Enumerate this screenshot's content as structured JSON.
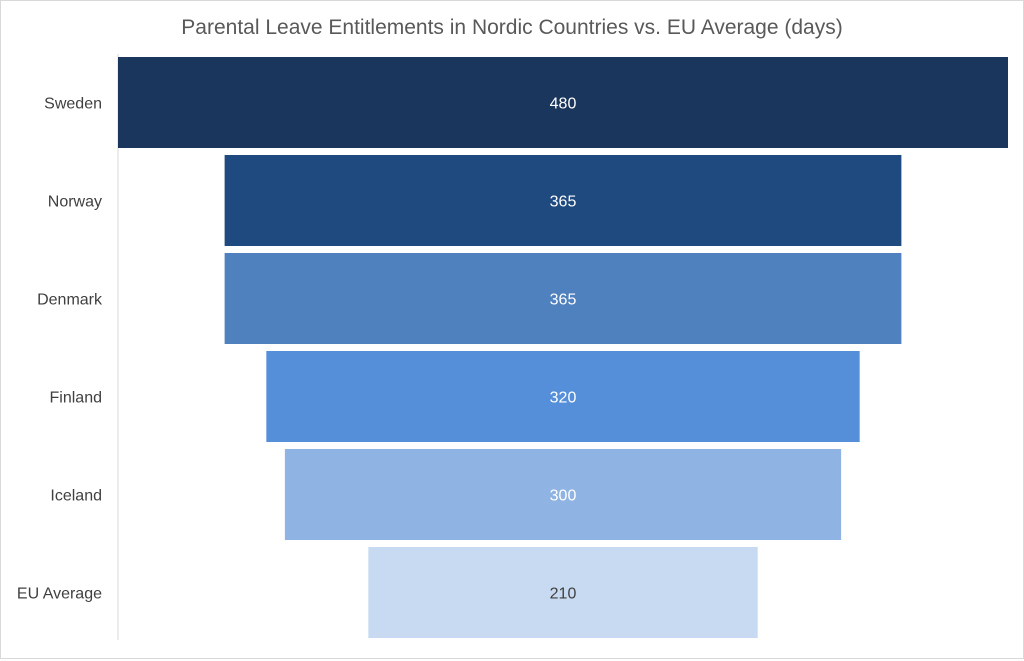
{
  "chart_data": {
    "type": "bar",
    "subtype": "funnel",
    "title": "Parental Leave Entitlements in Nordic Countries vs. EU Average (days)",
    "categories": [
      "Sweden",
      "Norway",
      "Denmark",
      "Finland",
      "Iceland",
      "EU Average"
    ],
    "values": [
      480,
      365,
      365,
      320,
      300,
      210
    ],
    "colors": [
      "#1b365d",
      "#1f4a7f",
      "#4e81bd",
      "#568fd9",
      "#8fb3e3",
      "#c7daf1"
    ],
    "value_label_colors": [
      "#ffffff",
      "#ffffff",
      "#ffffff",
      "#ffffff",
      "#ffffff",
      "#404040"
    ],
    "xlim": [
      0,
      480
    ],
    "grid": false,
    "legend": "none"
  }
}
